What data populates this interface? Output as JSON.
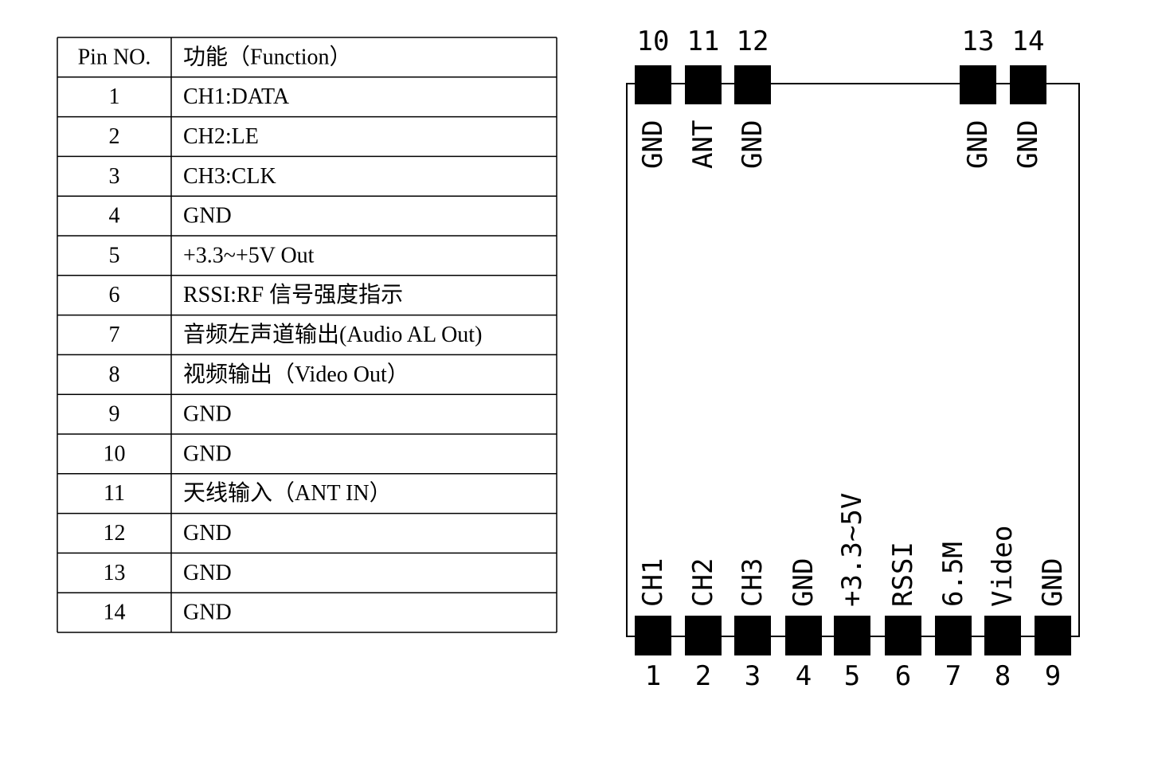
{
  "table": {
    "header": [
      "Pin NO.",
      "功能（Function）"
    ],
    "rows": [
      [
        "1",
        "CH1:DATA"
      ],
      [
        "2",
        "CH2:LE"
      ],
      [
        "3",
        "CH3:CLK"
      ],
      [
        "4",
        "GND"
      ],
      [
        "5",
        "+3.3~+5V Out"
      ],
      [
        "6",
        "RSSI:RF 信号强度指示"
      ],
      [
        "7",
        "音频左声道输出(Audio AL Out)"
      ],
      [
        "8",
        "视频输出（Video Out）"
      ],
      [
        "9",
        "GND"
      ],
      [
        "10",
        "GND"
      ],
      [
        "11",
        "天线输入（ANT IN）"
      ],
      [
        "12",
        "GND"
      ],
      [
        "13",
        "GND"
      ],
      [
        "14",
        "GND"
      ]
    ]
  },
  "diagram": {
    "top_pins": [
      {
        "number": "10",
        "label": "GND"
      },
      {
        "number": "11",
        "label": "ANT"
      },
      {
        "number": "12",
        "label": "GND"
      },
      {
        "number": "13",
        "label": "GND"
      },
      {
        "number": "14",
        "label": "GND"
      }
    ],
    "bottom_pins": [
      {
        "number": "1",
        "label": "CH1"
      },
      {
        "number": "2",
        "label": "CH2"
      },
      {
        "number": "3",
        "label": "CH3"
      },
      {
        "number": "4",
        "label": "GND"
      },
      {
        "number": "5",
        "label": "+3.3~5V"
      },
      {
        "number": "6",
        "label": "RSSI"
      },
      {
        "number": "7",
        "label": "6.5M"
      },
      {
        "number": "8",
        "label": "Video"
      },
      {
        "number": "9",
        "label": "GND"
      }
    ]
  }
}
